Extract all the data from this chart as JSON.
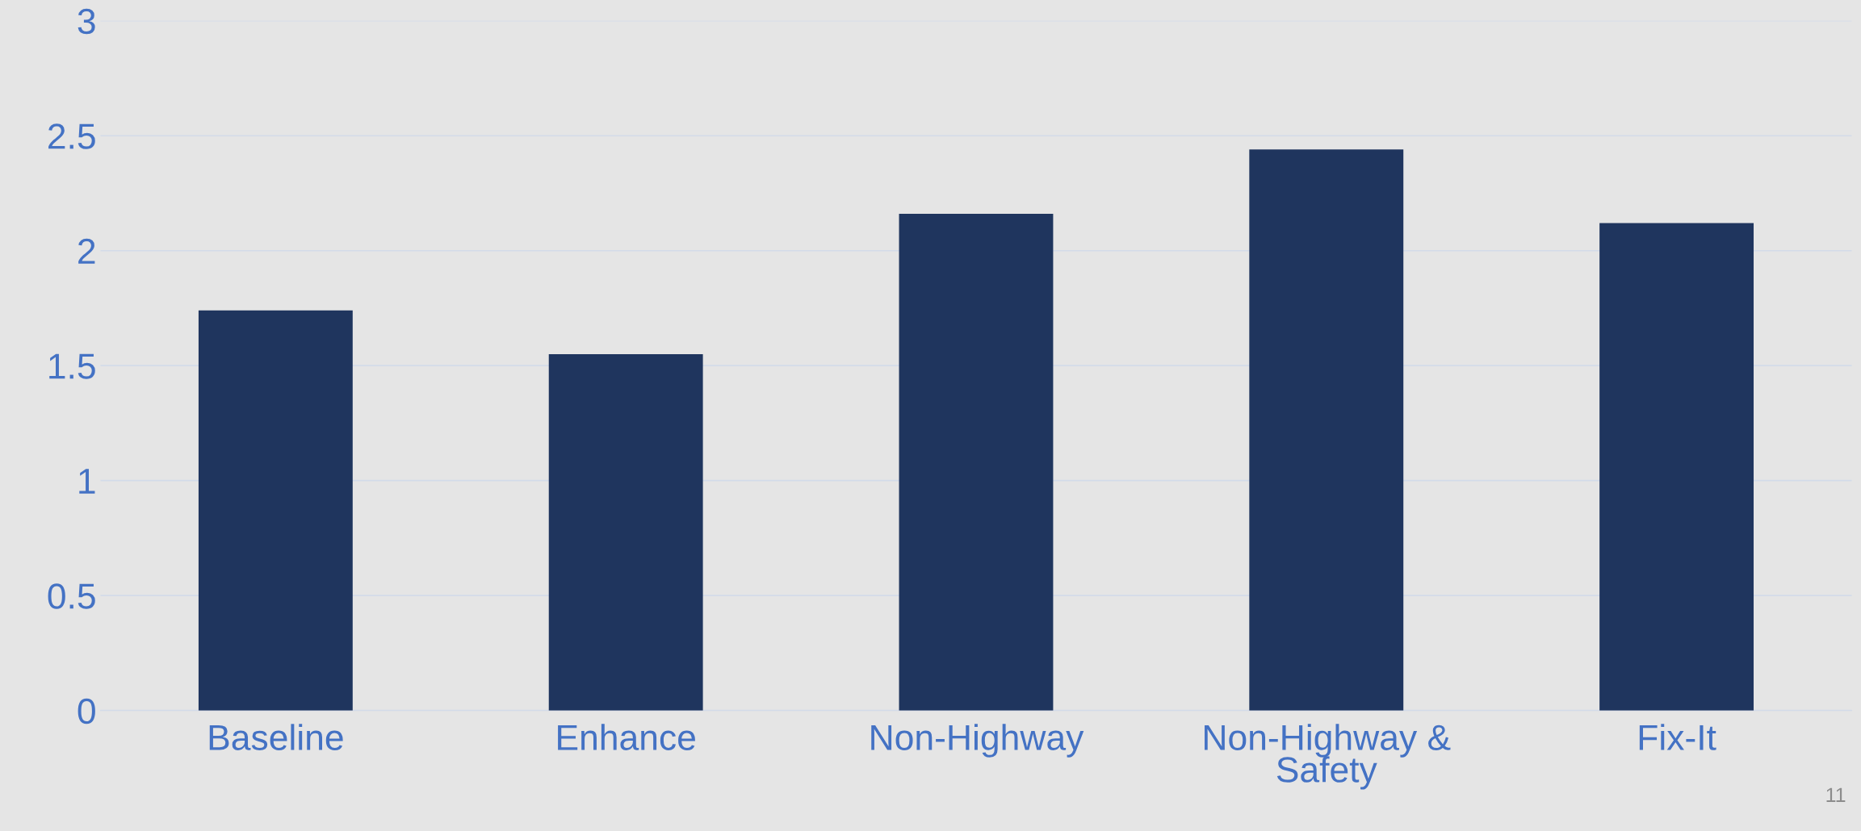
{
  "chart_data": {
    "type": "bar",
    "categories": [
      "Baseline",
      "Enhance",
      "Non-Highway",
      "Non-Highway &\nSafety",
      "Fix-It"
    ],
    "values": [
      1.74,
      1.55,
      2.16,
      2.44,
      2.12
    ],
    "color": "#1f355e",
    "ylim": [
      0,
      3
    ],
    "yticks": [
      0,
      0.5,
      1,
      1.5,
      2,
      2.5,
      3
    ],
    "grid": "y",
    "legend": false,
    "annotations": [
      "11"
    ]
  }
}
